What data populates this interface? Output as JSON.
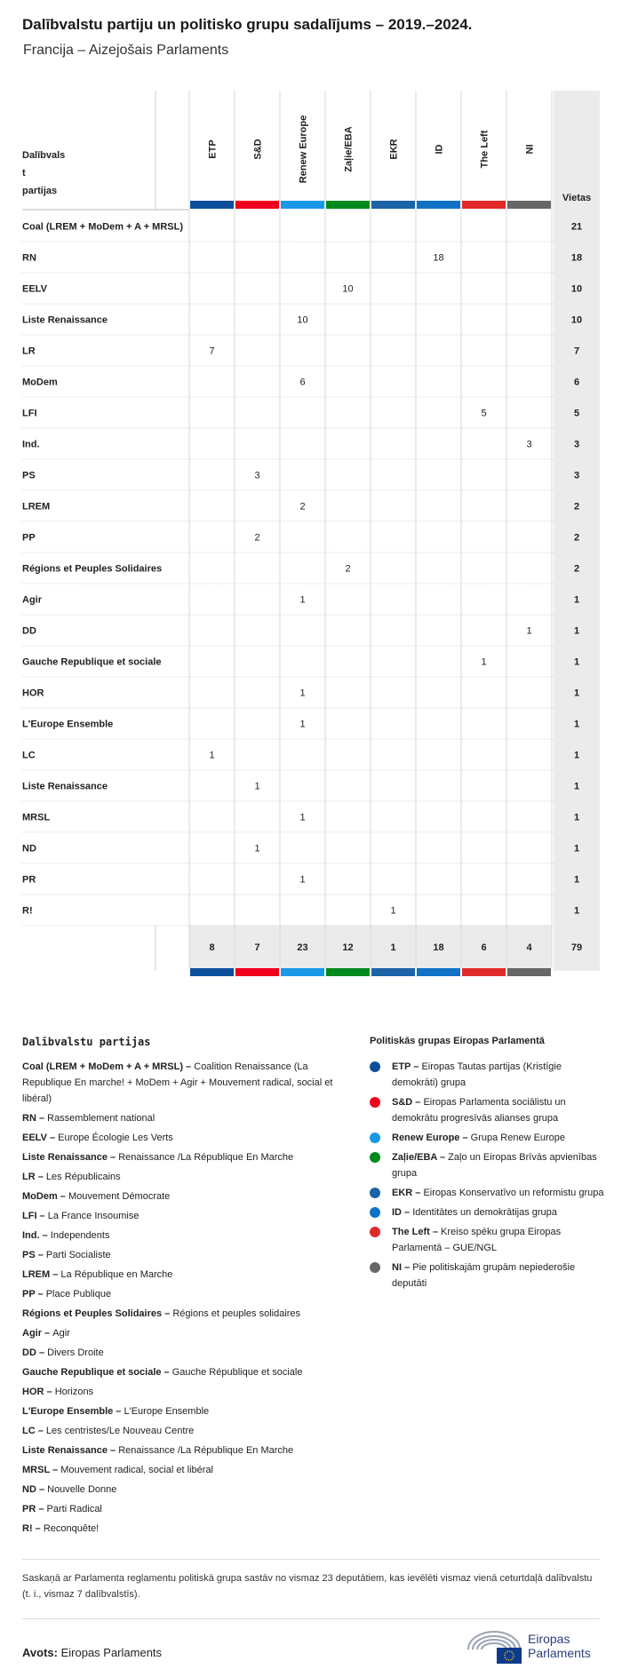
{
  "title": "Dalībvalstu partiju un politisko grupu sadalījums – 2019.–2024.",
  "subtitle": "Francija – Aizejošais Parlaments",
  "chart_data": {
    "type": "table",
    "corner_label": "Dalībvals tu partijas",
    "total_label": "Vietas",
    "groups": [
      {
        "code": "ETP",
        "color": "#0b4f9c"
      },
      {
        "code": "S&D",
        "color": "#f0001c"
      },
      {
        "code": "Renew Europe",
        "color": "#1a98e8"
      },
      {
        "code": "Zaļie/EBA",
        "color": "#008a1e"
      },
      {
        "code": "EKR",
        "color": "#1d63a7"
      },
      {
        "code": "ID",
        "color": "#0f72c7"
      },
      {
        "code": "The Left",
        "color": "#e02a2a"
      },
      {
        "code": "NI",
        "color": "#666666"
      }
    ],
    "rows": [
      {
        "party": "Coal (LREM + MoDem + A + MRSL)",
        "values": [
          null,
          null,
          null,
          null,
          null,
          null,
          null,
          null
        ],
        "total": "21"
      },
      {
        "party": "RN",
        "values": [
          null,
          null,
          null,
          null,
          null,
          "18",
          null,
          null
        ],
        "total": "18"
      },
      {
        "party": "EELV",
        "values": [
          null,
          null,
          null,
          "10",
          null,
          null,
          null,
          null
        ],
        "total": "10"
      },
      {
        "party": "Liste Renaissance",
        "values": [
          null,
          null,
          "10",
          null,
          null,
          null,
          null,
          null
        ],
        "total": "10"
      },
      {
        "party": "LR",
        "values": [
          "7",
          null,
          null,
          null,
          null,
          null,
          null,
          null
        ],
        "total": "7"
      },
      {
        "party": "MoDem",
        "values": [
          null,
          null,
          "6",
          null,
          null,
          null,
          null,
          null
        ],
        "total": "6"
      },
      {
        "party": "LFI",
        "values": [
          null,
          null,
          null,
          null,
          null,
          null,
          "5",
          null
        ],
        "total": "5"
      },
      {
        "party": "Ind.",
        "values": [
          null,
          null,
          null,
          null,
          null,
          null,
          null,
          "3"
        ],
        "total": "3"
      },
      {
        "party": "PS",
        "values": [
          null,
          "3",
          null,
          null,
          null,
          null,
          null,
          null
        ],
        "total": "3"
      },
      {
        "party": "LREM",
        "values": [
          null,
          null,
          "2",
          null,
          null,
          null,
          null,
          null
        ],
        "total": "2"
      },
      {
        "party": "PP",
        "values": [
          null,
          "2",
          null,
          null,
          null,
          null,
          null,
          null
        ],
        "total": "2"
      },
      {
        "party": "Régions et Peuples Solidaires",
        "values": [
          null,
          null,
          null,
          "2",
          null,
          null,
          null,
          null
        ],
        "total": "2"
      },
      {
        "party": "Agir",
        "values": [
          null,
          null,
          "1",
          null,
          null,
          null,
          null,
          null
        ],
        "total": "1"
      },
      {
        "party": "DD",
        "values": [
          null,
          null,
          null,
          null,
          null,
          null,
          null,
          "1"
        ],
        "total": "1"
      },
      {
        "party": "Gauche Republique et sociale",
        "values": [
          null,
          null,
          null,
          null,
          null,
          null,
          "1",
          null
        ],
        "total": "1"
      },
      {
        "party": "HOR",
        "values": [
          null,
          null,
          "1",
          null,
          null,
          null,
          null,
          null
        ],
        "total": "1"
      },
      {
        "party": "L'Europe Ensemble",
        "values": [
          null,
          null,
          "1",
          null,
          null,
          null,
          null,
          null
        ],
        "total": "1"
      },
      {
        "party": "LC",
        "values": [
          "1",
          null,
          null,
          null,
          null,
          null,
          null,
          null
        ],
        "total": "1"
      },
      {
        "party": "Liste Renaissance",
        "values": [
          null,
          "1",
          null,
          null,
          null,
          null,
          null,
          null
        ],
        "total": "1"
      },
      {
        "party": "MRSL",
        "values": [
          null,
          null,
          "1",
          null,
          null,
          null,
          null,
          null
        ],
        "total": "1"
      },
      {
        "party": "ND",
        "values": [
          null,
          "1",
          null,
          null,
          null,
          null,
          null,
          null
        ],
        "total": "1"
      },
      {
        "party": "PR",
        "values": [
          null,
          null,
          "1",
          null,
          null,
          null,
          null,
          null
        ],
        "total": "1"
      },
      {
        "party": "R!",
        "values": [
          null,
          null,
          null,
          null,
          "1",
          null,
          null,
          null
        ],
        "total": "1"
      }
    ],
    "column_totals": [
      "8",
      "7",
      "23",
      "12",
      "1",
      "18",
      "6",
      "4"
    ],
    "grand_total": "79"
  },
  "party_legend_title": "Dalībvalstu partijas",
  "party_legend": [
    {
      "abbr": "Coal (LREM + MoDem + A + MRSL) –",
      "name": "Coalition Renaissance (La Republique En marche! + MoDem + Agir + Mouvement radical, social et libéral)"
    },
    {
      "abbr": "RN –",
      "name": "Rassemblement national"
    },
    {
      "abbr": "EELV –",
      "name": "Europe Écologie Les Verts"
    },
    {
      "abbr": "Liste Renaissance –",
      "name": "Renaissance /La République En Marche"
    },
    {
      "abbr": "LR –",
      "name": "Les Républicains"
    },
    {
      "abbr": "MoDem –",
      "name": "Mouvement Démocrate"
    },
    {
      "abbr": "LFI –",
      "name": "La France Insoumise"
    },
    {
      "abbr": "Ind. –",
      "name": "Independents"
    },
    {
      "abbr": "PS –",
      "name": "Parti Socialiste"
    },
    {
      "abbr": "LREM –",
      "name": "La République en Marche"
    },
    {
      "abbr": "PP –",
      "name": "Place Publique"
    },
    {
      "abbr": "Régions et Peuples Solidaires –",
      "name": "Régions et peuples solidaires"
    },
    {
      "abbr": "Agir –",
      "name": "Agir"
    },
    {
      "abbr": "DD –",
      "name": "Divers Droite"
    },
    {
      "abbr": "Gauche Republique et sociale –",
      "name": "Gauche République et sociale"
    },
    {
      "abbr": "HOR –",
      "name": "Horizons"
    },
    {
      "abbr": "L'Europe Ensemble –",
      "name": "L'Europe Ensemble"
    },
    {
      "abbr": "LC –",
      "name": "Les centristes/Le Nouveau Centre"
    },
    {
      "abbr": "Liste Renaissance –",
      "name": "Renaissance /La République En Marche"
    },
    {
      "abbr": "MRSL –",
      "name": "Mouvement radical, social et libéral"
    },
    {
      "abbr": "ND –",
      "name": "Nouvelle Donne"
    },
    {
      "abbr": "PR –",
      "name": "Parti Radical"
    },
    {
      "abbr": "R! –",
      "name": "Reconquête!"
    }
  ],
  "group_legend_title": "Politiskās grupas Eiropas Parlamentā",
  "group_legend": [
    {
      "abbr": "ETP –",
      "name": "Eiropas Tautas partijas (Kristīgie demokrāti) grupa",
      "color": "#0b4f9c"
    },
    {
      "abbr": "S&D –",
      "name": "Eiropas Parlamenta sociālistu un demokrātu progresīvās alianses grupa",
      "color": "#f0001c"
    },
    {
      "abbr": "Renew Europe –",
      "name": "Grupa Renew Europe",
      "color": "#1a98e8"
    },
    {
      "abbr": "Zaļie/EBA –",
      "name": "Zaļo un Eiropas Brīvās apvienības grupa",
      "color": "#008a1e"
    },
    {
      "abbr": "EKR –",
      "name": "Eiropas Konservatīvo un reformistu grupa",
      "color": "#1d63a7"
    },
    {
      "abbr": "ID –",
      "name": "Identitātes un demokrātijas grupa",
      "color": "#0f72c7"
    },
    {
      "abbr": "The Left –",
      "name": "Kreiso spēku grupa Eiropas Parlamentā – GUE/NGL",
      "color": "#e02a2a"
    },
    {
      "abbr": "NI –",
      "name": "Pie politiskajām grupām nepiederošie deputāti",
      "color": "#666666"
    }
  ],
  "footnote": "Saskaņā ar Parlamenta reglamentu politiskā grupa sastāv no vismaz 23 deputātiem, kas ievēlēti vismaz vienā ceturtdaļā dalībvalstu (t. i., vismaz 7 dalībvalstīs).",
  "source_label": "Avots:",
  "source_value": "Eiropas Parlaments",
  "logo_line1": "Eiropas",
  "logo_line2": "Parlaments"
}
